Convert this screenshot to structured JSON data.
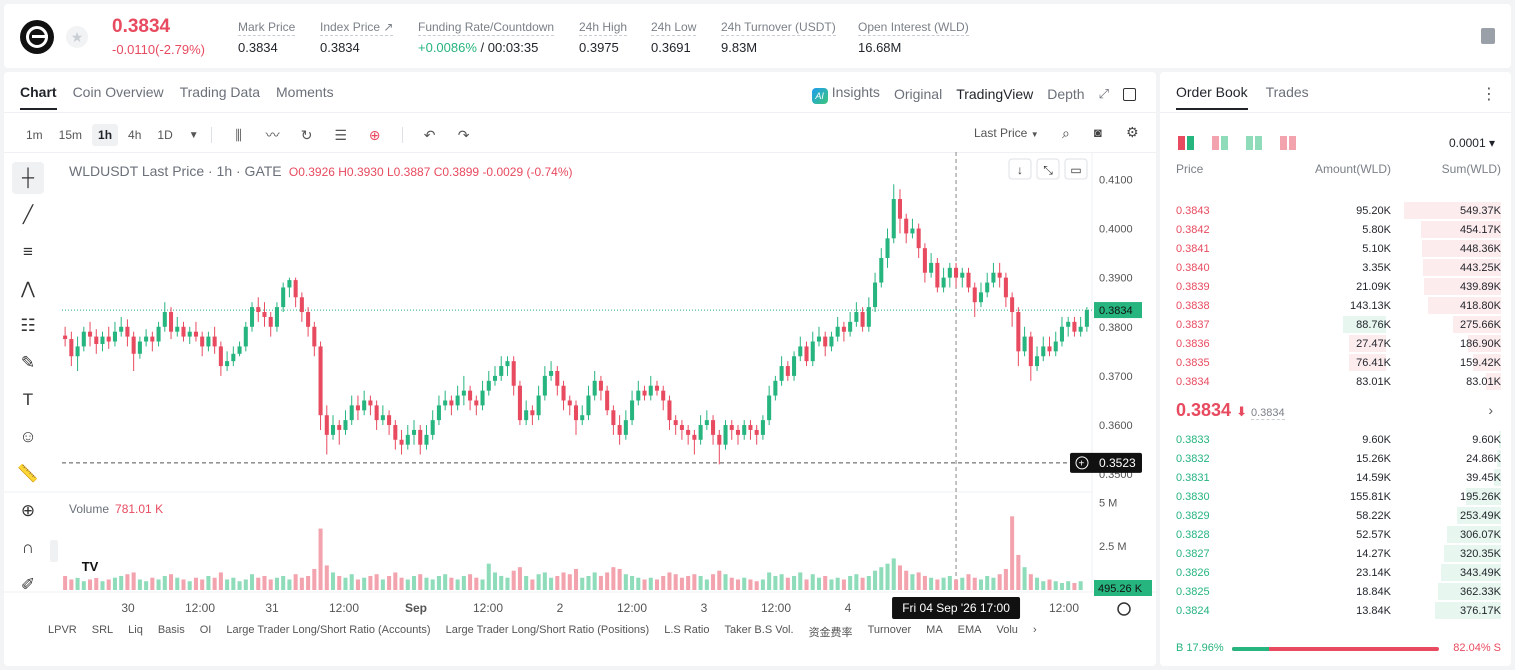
{
  "header": {
    "price": "0.3834",
    "change": "-0.0110(-2.79%)",
    "stats": [
      {
        "label": "Mark Price",
        "value": "0.3834"
      },
      {
        "label": "Index Price ↗",
        "value": "0.3834"
      },
      {
        "label": "Funding Rate/Countdown",
        "value_green": "+0.0086%",
        "value": " / 00:03:35"
      },
      {
        "label": "24h High",
        "value": "0.3975"
      },
      {
        "label": "24h Low",
        "value": "0.3691"
      },
      {
        "label": "24h Turnover (USDT)",
        "value": "9.83M"
      },
      {
        "label": "Open Interest (WLD)",
        "value": "16.68M"
      }
    ]
  },
  "chart_tabs": [
    "Chart",
    "Coin Overview",
    "Trading Data",
    "Moments"
  ],
  "view_tabs": {
    "insights": "Insights",
    "original": "Original",
    "tradingview": "TradingView",
    "depth": "Depth",
    "ai": "AI"
  },
  "timeframes": [
    "1m",
    "15m",
    "1h",
    "4h",
    "1D"
  ],
  "last_price_select": "Last Price",
  "legend": {
    "title": "WLDUSDT Last Price · 1h · GATE",
    "o": "O0.3926",
    "h": "H0.3930",
    "l": "L0.3887",
    "c": "C0.3899",
    "chg": "-0.0029 (-0.74%)"
  },
  "volume_legend": {
    "label": "Volume",
    "value": "781.01 K"
  },
  "tradingview_logo": "TV",
  "chart_data": {
    "type": "candlestick",
    "price_axis": [
      "0.4100",
      "0.4000",
      "0.3900",
      "0.3800",
      "0.3700",
      "0.3600",
      "0.3500"
    ],
    "volume_axis": [
      "5 M",
      "2.5 M"
    ],
    "x_labels": [
      "30",
      "12:00",
      "31",
      "12:00",
      "Sep",
      "12:00",
      "2",
      "12:00",
      "3",
      "12:00",
      "4",
      "12:00"
    ],
    "last_price_label": "0.3834",
    "crosshair_price_label": "0.3523",
    "crosshair_time_label": "Fri 04 Sep '26   17:00",
    "volume_value_label": "495.26 K",
    "candles": [
      [
        0.3782,
        0.3775,
        0.38,
        0.376
      ],
      [
        0.3775,
        0.374,
        0.379,
        0.372
      ],
      [
        0.374,
        0.376,
        0.378,
        0.371
      ],
      [
        0.376,
        0.379,
        0.38,
        0.375
      ],
      [
        0.379,
        0.378,
        0.381,
        0.376
      ],
      [
        0.378,
        0.3765,
        0.3795,
        0.3745
      ],
      [
        0.3765,
        0.378,
        0.379,
        0.375
      ],
      [
        0.378,
        0.377,
        0.38,
        0.3755
      ],
      [
        0.377,
        0.379,
        0.381,
        0.376
      ],
      [
        0.379,
        0.38,
        0.382,
        0.378
      ],
      [
        0.38,
        0.378,
        0.3815,
        0.376
      ],
      [
        0.378,
        0.3745,
        0.379,
        0.371
      ],
      [
        0.3745,
        0.377,
        0.378,
        0.3735
      ],
      [
        0.377,
        0.378,
        0.3795,
        0.376
      ],
      [
        0.378,
        0.377,
        0.379,
        0.375
      ],
      [
        0.377,
        0.38,
        0.381,
        0.376
      ],
      [
        0.38,
        0.383,
        0.385,
        0.379
      ],
      [
        0.383,
        0.379,
        0.384,
        0.3775
      ],
      [
        0.379,
        0.38,
        0.382,
        0.378
      ],
      [
        0.38,
        0.378,
        0.381,
        0.377
      ],
      [
        0.378,
        0.379,
        0.38,
        0.3765
      ],
      [
        0.379,
        0.378,
        0.381,
        0.377
      ],
      [
        0.378,
        0.376,
        0.379,
        0.374
      ],
      [
        0.376,
        0.378,
        0.379,
        0.375
      ],
      [
        0.378,
        0.376,
        0.38,
        0.3745
      ],
      [
        0.376,
        0.372,
        0.377,
        0.37
      ],
      [
        0.372,
        0.373,
        0.375,
        0.371
      ],
      [
        0.373,
        0.3745,
        0.376,
        0.372
      ],
      [
        0.3745,
        0.376,
        0.377,
        0.374
      ],
      [
        0.376,
        0.38,
        0.381,
        0.375
      ],
      [
        0.38,
        0.384,
        0.385,
        0.379
      ],
      [
        0.384,
        0.383,
        0.386,
        0.381
      ],
      [
        0.383,
        0.382,
        0.385,
        0.38
      ],
      [
        0.382,
        0.38,
        0.383,
        0.378
      ],
      [
        0.38,
        0.384,
        0.385,
        0.379
      ],
      [
        0.384,
        0.388,
        0.389,
        0.383
      ],
      [
        0.388,
        0.3895,
        0.39,
        0.386
      ],
      [
        0.3895,
        0.386,
        0.39,
        0.384
      ],
      [
        0.386,
        0.383,
        0.387,
        0.381
      ],
      [
        0.383,
        0.38,
        0.384,
        0.378
      ],
      [
        0.38,
        0.376,
        0.381,
        0.374
      ],
      [
        0.376,
        0.362,
        0.377,
        0.359
      ],
      [
        0.362,
        0.358,
        0.364,
        0.354
      ],
      [
        0.358,
        0.36,
        0.362,
        0.357
      ],
      [
        0.36,
        0.359,
        0.361,
        0.356
      ],
      [
        0.359,
        0.361,
        0.363,
        0.358
      ],
      [
        0.361,
        0.364,
        0.366,
        0.36
      ],
      [
        0.364,
        0.363,
        0.366,
        0.361
      ],
      [
        0.363,
        0.365,
        0.367,
        0.362
      ],
      [
        0.365,
        0.364,
        0.366,
        0.362
      ],
      [
        0.364,
        0.361,
        0.365,
        0.359
      ],
      [
        0.361,
        0.362,
        0.364,
        0.36
      ],
      [
        0.362,
        0.36,
        0.363,
        0.358
      ],
      [
        0.36,
        0.357,
        0.361,
        0.355
      ],
      [
        0.357,
        0.356,
        0.359,
        0.354
      ],
      [
        0.356,
        0.358,
        0.36,
        0.355
      ],
      [
        0.358,
        0.359,
        0.361,
        0.356
      ],
      [
        0.359,
        0.356,
        0.36,
        0.354
      ],
      [
        0.356,
        0.358,
        0.36,
        0.355
      ],
      [
        0.358,
        0.361,
        0.363,
        0.357
      ],
      [
        0.361,
        0.364,
        0.366,
        0.36
      ],
      [
        0.364,
        0.365,
        0.367,
        0.363
      ],
      [
        0.365,
        0.364,
        0.366,
        0.362
      ],
      [
        0.364,
        0.366,
        0.368,
        0.363
      ],
      [
        0.366,
        0.367,
        0.37,
        0.364
      ],
      [
        0.367,
        0.365,
        0.368,
        0.363
      ],
      [
        0.365,
        0.364,
        0.366,
        0.362
      ],
      [
        0.364,
        0.367,
        0.369,
        0.363
      ],
      [
        0.367,
        0.369,
        0.371,
        0.366
      ],
      [
        0.369,
        0.37,
        0.372,
        0.368
      ],
      [
        0.37,
        0.372,
        0.374,
        0.369
      ],
      [
        0.372,
        0.373,
        0.374,
        0.37
      ],
      [
        0.373,
        0.368,
        0.374,
        0.366
      ],
      [
        0.368,
        0.361,
        0.369,
        0.36
      ],
      [
        0.361,
        0.363,
        0.365,
        0.36
      ],
      [
        0.363,
        0.362,
        0.364,
        0.36
      ],
      [
        0.362,
        0.366,
        0.368,
        0.361
      ],
      [
        0.366,
        0.37,
        0.372,
        0.365
      ],
      [
        0.37,
        0.371,
        0.373,
        0.369
      ],
      [
        0.371,
        0.368,
        0.372,
        0.366
      ],
      [
        0.368,
        0.365,
        0.369,
        0.363
      ],
      [
        0.365,
        0.364,
        0.366,
        0.362
      ],
      [
        0.364,
        0.361,
        0.365,
        0.358
      ],
      [
        0.361,
        0.362,
        0.364,
        0.36
      ],
      [
        0.362,
        0.366,
        0.368,
        0.361
      ],
      [
        0.366,
        0.369,
        0.371,
        0.365
      ],
      [
        0.369,
        0.367,
        0.37,
        0.365
      ],
      [
        0.367,
        0.363,
        0.368,
        0.362
      ],
      [
        0.363,
        0.36,
        0.364,
        0.358
      ],
      [
        0.36,
        0.358,
        0.362,
        0.356
      ],
      [
        0.358,
        0.361,
        0.363,
        0.357
      ],
      [
        0.361,
        0.365,
        0.367,
        0.36
      ],
      [
        0.365,
        0.367,
        0.369,
        0.364
      ],
      [
        0.367,
        0.366,
        0.368,
        0.365
      ],
      [
        0.366,
        0.368,
        0.37,
        0.365
      ],
      [
        0.368,
        0.367,
        0.369,
        0.366
      ],
      [
        0.367,
        0.365,
        0.368,
        0.363
      ],
      [
        0.365,
        0.361,
        0.366,
        0.359
      ],
      [
        0.361,
        0.36,
        0.362,
        0.358
      ],
      [
        0.36,
        0.359,
        0.361,
        0.357
      ],
      [
        0.359,
        0.358,
        0.36,
        0.356
      ],
      [
        0.358,
        0.357,
        0.359,
        0.354
      ],
      [
        0.357,
        0.36,
        0.362,
        0.356
      ],
      [
        0.36,
        0.361,
        0.363,
        0.359
      ],
      [
        0.361,
        0.358,
        0.362,
        0.356
      ],
      [
        0.358,
        0.356,
        0.359,
        0.352
      ],
      [
        0.356,
        0.36,
        0.361,
        0.355
      ],
      [
        0.36,
        0.359,
        0.361,
        0.357
      ],
      [
        0.359,
        0.358,
        0.36,
        0.356
      ],
      [
        0.358,
        0.36,
        0.361,
        0.357
      ],
      [
        0.36,
        0.359,
        0.361,
        0.357
      ],
      [
        0.359,
        0.358,
        0.36,
        0.356
      ],
      [
        0.358,
        0.361,
        0.362,
        0.357
      ],
      [
        0.361,
        0.366,
        0.368,
        0.36
      ],
      [
        0.366,
        0.369,
        0.37,
        0.365
      ],
      [
        0.369,
        0.372,
        0.374,
        0.368
      ],
      [
        0.372,
        0.37,
        0.373,
        0.369
      ],
      [
        0.37,
        0.374,
        0.375,
        0.369
      ],
      [
        0.374,
        0.376,
        0.378,
        0.373
      ],
      [
        0.376,
        0.373,
        0.377,
        0.372
      ],
      [
        0.373,
        0.377,
        0.379,
        0.372
      ],
      [
        0.377,
        0.378,
        0.38,
        0.376
      ],
      [
        0.378,
        0.376,
        0.379,
        0.374
      ],
      [
        0.376,
        0.378,
        0.379,
        0.375
      ],
      [
        0.378,
        0.38,
        0.382,
        0.377
      ],
      [
        0.38,
        0.379,
        0.381,
        0.377
      ],
      [
        0.379,
        0.381,
        0.383,
        0.378
      ],
      [
        0.381,
        0.383,
        0.385,
        0.38
      ],
      [
        0.383,
        0.38,
        0.384,
        0.379
      ],
      [
        0.38,
        0.384,
        0.386,
        0.379
      ],
      [
        0.384,
        0.389,
        0.391,
        0.383
      ],
      [
        0.389,
        0.394,
        0.396,
        0.388
      ],
      [
        0.394,
        0.398,
        0.4,
        0.392
      ],
      [
        0.398,
        0.406,
        0.409,
        0.397
      ],
      [
        0.406,
        0.402,
        0.408,
        0.399
      ],
      [
        0.402,
        0.399,
        0.403,
        0.397
      ],
      [
        0.399,
        0.4,
        0.402,
        0.398
      ],
      [
        0.4,
        0.396,
        0.401,
        0.394
      ],
      [
        0.396,
        0.391,
        0.397,
        0.389
      ],
      [
        0.391,
        0.393,
        0.395,
        0.39
      ],
      [
        0.393,
        0.388,
        0.394,
        0.387
      ],
      [
        0.388,
        0.39,
        0.392,
        0.387
      ],
      [
        0.39,
        0.392,
        0.393,
        0.388
      ],
      [
        0.392,
        0.39,
        0.393,
        0.388
      ],
      [
        0.39,
        0.391,
        0.392,
        0.388
      ],
      [
        0.391,
        0.388,
        0.392,
        0.387
      ],
      [
        0.388,
        0.385,
        0.389,
        0.382
      ],
      [
        0.385,
        0.387,
        0.389,
        0.384
      ],
      [
        0.387,
        0.389,
        0.391,
        0.386
      ],
      [
        0.389,
        0.391,
        0.393,
        0.388
      ],
      [
        0.391,
        0.39,
        0.393,
        0.388
      ],
      [
        0.39,
        0.386,
        0.391,
        0.384
      ],
      [
        0.386,
        0.383,
        0.387,
        0.38
      ],
      [
        0.383,
        0.375,
        0.384,
        0.372
      ],
      [
        0.375,
        0.378,
        0.38,
        0.374
      ],
      [
        0.378,
        0.372,
        0.379,
        0.369
      ],
      [
        0.372,
        0.374,
        0.376,
        0.371
      ],
      [
        0.374,
        0.376,
        0.378,
        0.373
      ],
      [
        0.376,
        0.375,
        0.378,
        0.374
      ],
      [
        0.375,
        0.377,
        0.379,
        0.374
      ],
      [
        0.377,
        0.38,
        0.382,
        0.376
      ],
      [
        0.38,
        0.381,
        0.382,
        0.378
      ],
      [
        0.381,
        0.379,
        0.382,
        0.378
      ],
      [
        0.379,
        0.38,
        0.382,
        0.378
      ],
      [
        0.38,
        0.3834,
        0.384,
        0.379
      ]
    ],
    "volumes_m": [
      0.8,
      0.6,
      0.7,
      0.5,
      0.6,
      0.9,
      0.5,
      0.6,
      0.7,
      0.8,
      0.9,
      1.0,
      0.6,
      0.5,
      0.7,
      0.6,
      0.8,
      0.9,
      0.7,
      0.6,
      0.5,
      0.7,
      0.6,
      0.8,
      0.7,
      1.0,
      0.6,
      0.7,
      0.5,
      0.6,
      0.9,
      0.7,
      0.8,
      0.6,
      0.7,
      0.8,
      0.6,
      0.9,
      0.7,
      0.8,
      1.2,
      3.5,
      1.4,
      1.0,
      0.8,
      0.7,
      0.9,
      0.6,
      0.7,
      0.8,
      0.9,
      0.6,
      0.8,
      1.0,
      0.7,
      0.6,
      0.8,
      0.9,
      0.7,
      0.6,
      0.8,
      0.9,
      0.7,
      0.6,
      0.8,
      0.9,
      0.7,
      0.6,
      1.5,
      1.0,
      0.8,
      0.7,
      1.1,
      1.3,
      0.8,
      0.6,
      0.9,
      1.0,
      0.7,
      0.8,
      1.0,
      0.9,
      1.2,
      0.7,
      0.8,
      1.0,
      0.8,
      1.0,
      1.3,
      1.2,
      0.9,
      0.8,
      0.7,
      0.6,
      0.7,
      0.6,
      0.8,
      1.0,
      0.9,
      0.7,
      0.8,
      0.9,
      0.8,
      0.6,
      0.9,
      1.1,
      0.9,
      0.7,
      0.6,
      0.7,
      0.6,
      0.5,
      0.6,
      1.0,
      0.8,
      0.9,
      0.7,
      0.8,
      1.0,
      0.6,
      0.9,
      0.7,
      0.8,
      0.6,
      0.7,
      0.6,
      0.8,
      0.9,
      0.7,
      0.8,
      1.1,
      1.3,
      1.5,
      1.8,
      1.4,
      1.1,
      0.9,
      1.0,
      0.8,
      0.7,
      0.6,
      0.7,
      0.8,
      0.6,
      0.7,
      0.9,
      0.7,
      0.6,
      0.8,
      0.7,
      0.9,
      1.2,
      4.2,
      2.0,
      1.3,
      0.9,
      0.7,
      0.5,
      0.6,
      0.5,
      0.4,
      0.5,
      0.4,
      0.5
    ]
  },
  "bottom_indicators": [
    "LPVR",
    "SRL",
    "Liq",
    "Basis",
    "OI",
    "Large Trader Long/Short Ratio (Accounts)",
    "Large Trader Long/Short Ratio (Positions)",
    "L.S Ratio",
    "Taker B.S Vol.",
    "资金费率",
    "Turnover",
    "MA",
    "EMA",
    "Volu"
  ],
  "orderbook": {
    "tabs": [
      "Order Book",
      "Trades"
    ],
    "precision": "0.0001 ▾",
    "headers": {
      "price": "Price",
      "amount": "Amount(WLD)",
      "sum": "Sum(WLD)"
    },
    "asks": [
      {
        "price": "0.3843",
        "amount": "95.20K",
        "sum": "549.37K",
        "depth": 0.92,
        "amt": 0
      },
      {
        "price": "0.3842",
        "amount": "5.80K",
        "sum": "454.17K",
        "depth": 0.76,
        "amt": 0
      },
      {
        "price": "0.3841",
        "amount": "5.10K",
        "sum": "448.36K",
        "depth": 0.75,
        "amt": 0
      },
      {
        "price": "0.3840",
        "amount": "3.35K",
        "sum": "443.25K",
        "depth": 0.74,
        "amt": 0
      },
      {
        "price": "0.3839",
        "amount": "21.09K",
        "sum": "439.89K",
        "depth": 0.73,
        "amt": 0
      },
      {
        "price": "0.3838",
        "amount": "143.13K",
        "sum": "418.80K",
        "depth": 0.7,
        "amt": 0
      },
      {
        "price": "0.3837",
        "amount": "88.76K",
        "sum": "275.66K",
        "depth": 0.46,
        "amt": 0.36,
        "amt_green": true
      },
      {
        "price": "0.3836",
        "amount": "27.47K",
        "sum": "186.90K",
        "depth": 0.31,
        "amt": 0.31
      },
      {
        "price": "0.3835",
        "amount": "76.41K",
        "sum": "159.42K",
        "depth": 0.27,
        "amt": 0.31
      },
      {
        "price": "0.3834",
        "amount": "83.01K",
        "sum": "83.01K",
        "depth": 0.14,
        "amt": 0
      }
    ],
    "mid": {
      "price": "0.3834",
      "arrow": "⬇",
      "index": "0.3834"
    },
    "bids": [
      {
        "price": "0.3833",
        "amount": "9.60K",
        "sum": "9.60K",
        "depth": 0.02
      },
      {
        "price": "0.3832",
        "amount": "15.26K",
        "sum": "24.86K",
        "depth": 0.04
      },
      {
        "price": "0.3831",
        "amount": "14.59K",
        "sum": "39.45K",
        "depth": 0.07
      },
      {
        "price": "0.3830",
        "amount": "155.81K",
        "sum": "195.26K",
        "depth": 0.33
      },
      {
        "price": "0.3829",
        "amount": "58.22K",
        "sum": "253.49K",
        "depth": 0.42
      },
      {
        "price": "0.3828",
        "amount": "52.57K",
        "sum": "306.07K",
        "depth": 0.51
      },
      {
        "price": "0.3827",
        "amount": "14.27K",
        "sum": "320.35K",
        "depth": 0.54
      },
      {
        "price": "0.3826",
        "amount": "23.14K",
        "sum": "343.49K",
        "depth": 0.57
      },
      {
        "price": "0.3825",
        "amount": "18.84K",
        "sum": "362.33K",
        "depth": 0.6
      },
      {
        "price": "0.3824",
        "amount": "13.84K",
        "sum": "376.17K",
        "depth": 0.63
      }
    ],
    "ratio": {
      "buy": "B 17.96%",
      "sell": "82.04% S",
      "buy_fraction": 0.1796
    }
  },
  "colors": {
    "up": "#26b47f",
    "down": "#e84a5f",
    "up_vol": "#8fdcbb",
    "down_vol": "#f3a3ae"
  }
}
